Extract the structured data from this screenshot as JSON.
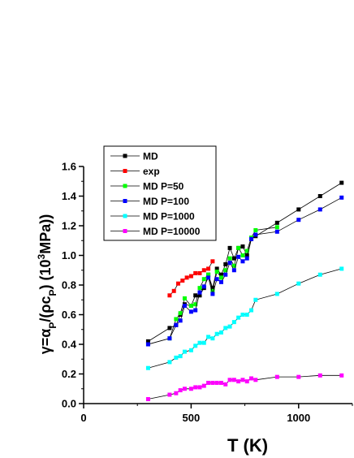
{
  "chart_data": {
    "type": "line",
    "xlabel": "T (K)",
    "ylabel_parts": {
      "a": "γ=α",
      "a_sub": "P",
      "b": "/(ρc",
      "b_sub": "P",
      "c": ") (10",
      "c_sup": "3",
      "d": "MPa))"
    },
    "xlim": [
      0,
      1250
    ],
    "ylim": [
      0,
      1.6
    ],
    "xticks": [
      0,
      500,
      1000
    ],
    "yticks": [
      0.0,
      0.2,
      0.4,
      0.6,
      0.8,
      1.0,
      1.2,
      1.4,
      1.6
    ],
    "xtick_labels": [
      "0",
      "500",
      "1000"
    ],
    "ytick_labels": [
      "0.0",
      "0.2",
      "0.4",
      "0.6",
      "0.8",
      "1.0",
      "1.2",
      "1.4",
      "1.6"
    ],
    "grid": false,
    "legend_position": "top-left",
    "series": [
      {
        "name": "MD",
        "color": "#000000",
        "points": [
          [
            300,
            0.42
          ],
          [
            400,
            0.51
          ],
          [
            430,
            0.53
          ],
          [
            450,
            0.6
          ],
          [
            470,
            0.67
          ],
          [
            500,
            0.66
          ],
          [
            520,
            0.73
          ],
          [
            540,
            0.73
          ],
          [
            560,
            0.78
          ],
          [
            580,
            0.87
          ],
          [
            600,
            0.78
          ],
          [
            620,
            0.91
          ],
          [
            640,
            0.87
          ],
          [
            660,
            0.94
          ],
          [
            680,
            1.05
          ],
          [
            700,
            0.98
          ],
          [
            720,
            1.05
          ],
          [
            740,
            1.06
          ],
          [
            760,
            1.0
          ],
          [
            780,
            1.11
          ],
          [
            800,
            1.13
          ],
          [
            900,
            1.22
          ],
          [
            1000,
            1.31
          ],
          [
            1100,
            1.4
          ],
          [
            1200,
            1.49
          ]
        ]
      },
      {
        "name": "exp",
        "color": "#ff0000",
        "points": [
          [
            400,
            0.73
          ],
          [
            420,
            0.76
          ],
          [
            440,
            0.81
          ],
          [
            460,
            0.83
          ],
          [
            480,
            0.85
          ],
          [
            500,
            0.86
          ],
          [
            520,
            0.88
          ],
          [
            540,
            0.88
          ],
          [
            560,
            0.9
          ],
          [
            580,
            0.91
          ],
          [
            600,
            0.96
          ]
        ]
      },
      {
        "name": "MD P=50",
        "color": "#00ff00",
        "points": [
          [
            300,
            0.4
          ],
          [
            400,
            0.44
          ],
          [
            430,
            0.57
          ],
          [
            450,
            0.61
          ],
          [
            470,
            0.71
          ],
          [
            500,
            0.66
          ],
          [
            520,
            0.67
          ],
          [
            540,
            0.78
          ],
          [
            560,
            0.84
          ],
          [
            580,
            0.87
          ],
          [
            600,
            0.76
          ],
          [
            620,
            0.89
          ],
          [
            640,
            0.85
          ],
          [
            660,
            0.9
          ],
          [
            680,
            0.98
          ],
          [
            700,
            0.93
          ],
          [
            720,
            1.05
          ],
          [
            740,
            1.0
          ],
          [
            760,
            1.03
          ],
          [
            780,
            1.12
          ],
          [
            800,
            1.17
          ],
          [
            900,
            1.19
          ]
        ]
      },
      {
        "name": "MD P=100",
        "color": "#0000ff",
        "points": [
          [
            300,
            0.4
          ],
          [
            400,
            0.44
          ],
          [
            430,
            0.53
          ],
          [
            450,
            0.56
          ],
          [
            470,
            0.66
          ],
          [
            500,
            0.62
          ],
          [
            520,
            0.63
          ],
          [
            540,
            0.75
          ],
          [
            560,
            0.79
          ],
          [
            580,
            0.85
          ],
          [
            600,
            0.74
          ],
          [
            620,
            0.84
          ],
          [
            640,
            0.82
          ],
          [
            660,
            0.87
          ],
          [
            680,
            0.95
          ],
          [
            700,
            0.9
          ],
          [
            720,
            0.99
          ],
          [
            740,
            0.96
          ],
          [
            760,
            0.98
          ],
          [
            780,
            1.11
          ],
          [
            800,
            1.14
          ],
          [
            900,
            1.16
          ],
          [
            1000,
            1.24
          ],
          [
            1100,
            1.31
          ],
          [
            1200,
            1.39
          ]
        ]
      },
      {
        "name": "MD P=1000",
        "color": "#00ffff",
        "points": [
          [
            300,
            0.24
          ],
          [
            400,
            0.28
          ],
          [
            430,
            0.31
          ],
          [
            450,
            0.32
          ],
          [
            470,
            0.35
          ],
          [
            500,
            0.36
          ],
          [
            520,
            0.39
          ],
          [
            540,
            0.41
          ],
          [
            560,
            0.41
          ],
          [
            580,
            0.45
          ],
          [
            600,
            0.44
          ],
          [
            620,
            0.47
          ],
          [
            640,
            0.48
          ],
          [
            660,
            0.51
          ],
          [
            680,
            0.52
          ],
          [
            700,
            0.55
          ],
          [
            720,
            0.58
          ],
          [
            740,
            0.6
          ],
          [
            760,
            0.6
          ],
          [
            780,
            0.63
          ],
          [
            800,
            0.7
          ],
          [
            900,
            0.74
          ],
          [
            1000,
            0.81
          ],
          [
            1100,
            0.87
          ],
          [
            1200,
            0.91
          ]
        ]
      },
      {
        "name": "MD P=10000",
        "color": "#ff00ff",
        "points": [
          [
            300,
            0.03
          ],
          [
            400,
            0.06
          ],
          [
            430,
            0.07
          ],
          [
            450,
            0.09
          ],
          [
            470,
            0.1
          ],
          [
            500,
            0.1
          ],
          [
            520,
            0.11
          ],
          [
            540,
            0.11
          ],
          [
            560,
            0.12
          ],
          [
            580,
            0.14
          ],
          [
            600,
            0.14
          ],
          [
            620,
            0.14
          ],
          [
            640,
            0.14
          ],
          [
            660,
            0.13
          ],
          [
            680,
            0.16
          ],
          [
            700,
            0.16
          ],
          [
            720,
            0.15
          ],
          [
            740,
            0.16
          ],
          [
            760,
            0.15
          ],
          [
            780,
            0.17
          ],
          [
            800,
            0.16
          ],
          [
            900,
            0.18
          ],
          [
            1000,
            0.18
          ],
          [
            1100,
            0.19
          ],
          [
            1200,
            0.19
          ]
        ]
      }
    ]
  }
}
